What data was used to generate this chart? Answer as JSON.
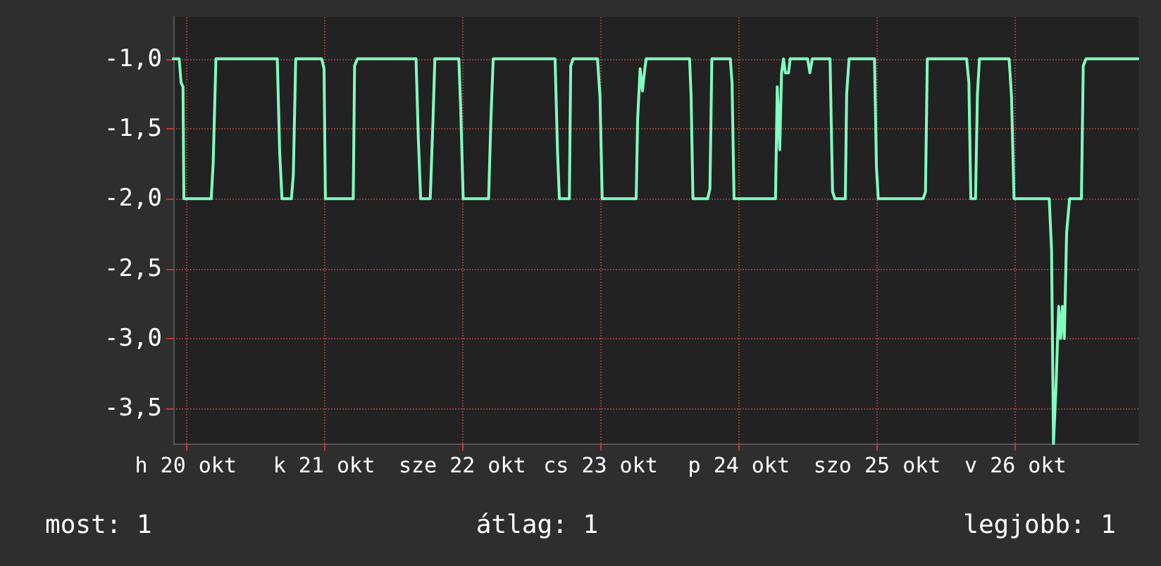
{
  "chart_data": {
    "type": "line",
    "annotations": [
      "most: 1",
      "átlag: 1",
      "legjobb: 1"
    ],
    "x": [
      "--10-19T21:50",
      "--10-19T22:51",
      "--10-19T23:11",
      "--10-19T23:31",
      "--10-19T23:40",
      "--10-20T04:25",
      "--10-20T04:45",
      "--10-20T05:14",
      "--10-20T15:53",
      "--10-20T16:18",
      "--10-20T16:42",
      "--10-20T18:20",
      "--10-20T18:40",
      "--10-20T19:05",
      "--10-20T23:35",
      "--10-21T00:00",
      "--10-21T00:14",
      "--10-21T05:04",
      "--10-21T05:18",
      "--10-21T05:48",
      "--10-21T15:58",
      "--10-21T16:22",
      "--10-21T16:46",
      "--10-21T18:26",
      "--10-21T18:55",
      "--10-21T19:14",
      "--10-21T23:24",
      "--10-21T23:44",
      "--10-22T00:09",
      "--10-22T04:34",
      "--10-22T04:58",
      "--10-22T05:22",
      "--10-22T16:06",
      "--10-22T16:32",
      "--10-22T16:51",
      "--10-22T18:35",
      "--10-22T18:49",
      "--10-22T19:14",
      "--10-22T23:28",
      "--10-22T23:54",
      "--10-23T00:17",
      "--10-23T06:11",
      "--10-23T06:26",
      "--10-23T06:52",
      "--10-23T07:16",
      "--10-23T07:41",
      "--10-23T07:55",
      "--10-23T15:27",
      "--10-23T15:43",
      "--10-23T16:02",
      "--10-23T18:35",
      "--10-23T18:59",
      "--10-23T19:19",
      "--10-23T22:31",
      "--10-23T22:49",
      "--10-23T23:10",
      "--10-24T06:22",
      "--10-24T06:40",
      "--10-24T07:06",
      "--10-24T07:25",
      "--10-24T07:45",
      "--10-24T08:05",
      "--10-24T08:38",
      "--10-24T08:54",
      "--10-24T11:56",
      "--10-24T12:20",
      "--10-24T12:45",
      "--10-24T15:50",
      "--10-24T16:16",
      "--10-24T16:41",
      "--10-24T18:29",
      "--10-24T18:43",
      "--10-24T19:08",
      "--10-24T23:33",
      "--10-24T23:53",
      "--10-25T00:12",
      "--10-25T07:59",
      "--10-25T08:24",
      "--10-25T08:43",
      "--10-25T15:32",
      "--10-25T15:56",
      "--10-25T16:16",
      "--10-25T17:05",
      "--10-25T17:25",
      "--10-25T17:46",
      "--10-25T22:55",
      "--10-25T23:20",
      "--10-25T23:46",
      "--10-26T05:53",
      "--10-26T06:17",
      "--10-26T06:37",
      "--10-26T07:02",
      "--10-26T07:31",
      "--10-26T07:51",
      "--10-26T08:10",
      "--10-26T08:30",
      "--10-26T08:54",
      "--10-26T09:25",
      "--10-26T11:28",
      "--10-26T11:47",
      "--10-26T12:16",
      "--10-26T21:16"
    ],
    "series": [
      {
        "color": "#80ffbf",
        "values": [
          -1,
          -1,
          -1.17,
          -1.2,
          -2,
          -2,
          -1.75,
          -1,
          -1,
          -1.67,
          -2,
          -2,
          -1.83,
          -1,
          -1,
          -1.07,
          -2,
          -2,
          -1.05,
          -1,
          -1,
          -1.57,
          -2,
          -2,
          -1.43,
          -1,
          -1,
          -1.37,
          -2,
          -2,
          -1.43,
          -1,
          -1,
          -1.67,
          -2,
          -2,
          -1.05,
          -1,
          -1,
          -1.27,
          -2,
          -2,
          -1.43,
          -1.07,
          -1.23,
          -1.07,
          -1,
          -1,
          -1.27,
          -2,
          -2,
          -1.93,
          -1,
          -1,
          -1.17,
          -2,
          -2,
          -1.2,
          -1.65,
          -1.1,
          -1,
          -1.1,
          -1.1,
          -1,
          -1,
          -1.1,
          -1,
          -1,
          -1.95,
          -2,
          -2,
          -1.25,
          -1,
          -1,
          -1.77,
          -2,
          -2,
          -1.95,
          -1,
          -1,
          -1.17,
          -2,
          -2,
          -1.25,
          -1,
          -1,
          -1.27,
          -2,
          -2,
          -2.37,
          -3.75,
          -3.37,
          -2.77,
          -3.0,
          -2.77,
          -3.0,
          -2.24,
          -2,
          -2,
          -1.05,
          -1,
          -1
        ]
      }
    ],
    "xlim": [
      "--10-19T21:50",
      "--10-26T21:22"
    ],
    "xticks": [
      {
        "value": "--10-20",
        "label": "h 20 okt"
      },
      {
        "value": "--10-21",
        "label": "k 21 okt"
      },
      {
        "value": "--10-22",
        "label": "sze 22 okt"
      },
      {
        "value": "--10-23",
        "label": "cs 23 okt"
      },
      {
        "value": "--10-24",
        "label": "p 24 okt"
      },
      {
        "value": "--10-25",
        "label": "szo 25 okt"
      },
      {
        "value": "--10-26",
        "label": "v 26 okt"
      }
    ],
    "ylim": [
      -3.75,
      -0.7
    ],
    "yticks": [
      {
        "value": -1,
        "label": "-1,0"
      },
      {
        "value": -1.5,
        "label": "-1,5"
      },
      {
        "value": -2,
        "label": "-2,0"
      },
      {
        "value": -2.5,
        "label": "-2,5"
      },
      {
        "value": -3,
        "label": "-3,0"
      },
      {
        "value": -3.5,
        "label": "-3,5"
      }
    ],
    "grid": true,
    "marker": "none",
    "line_style": "solid"
  }
}
